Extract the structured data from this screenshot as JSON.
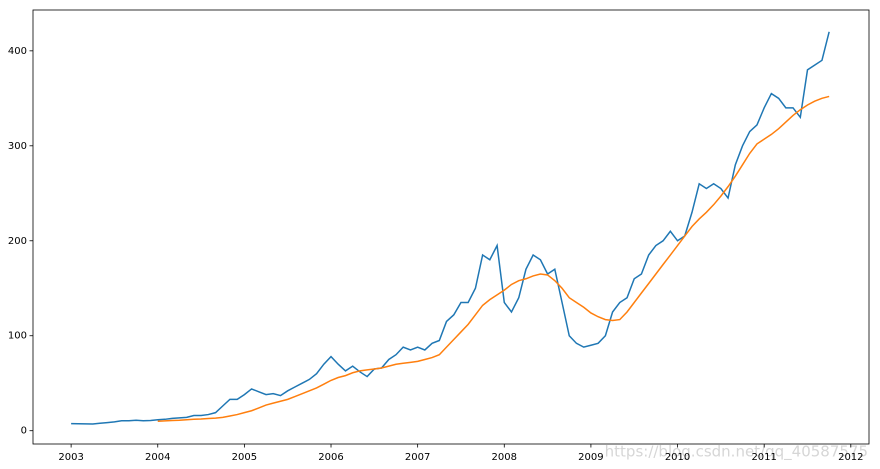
{
  "chart_data": {
    "type": "line",
    "watermark": "https://blog.csdn.net/qq_40587575",
    "x": [
      2003.0,
      2003.083,
      2003.167,
      2003.25,
      2003.333,
      2003.417,
      2003.5,
      2003.583,
      2003.667,
      2003.75,
      2003.833,
      2003.917,
      2004.0,
      2004.083,
      2004.167,
      2004.25,
      2004.333,
      2004.417,
      2004.5,
      2004.583,
      2004.667,
      2004.75,
      2004.833,
      2004.917,
      2005.0,
      2005.083,
      2005.167,
      2005.25,
      2005.333,
      2005.417,
      2005.5,
      2005.583,
      2005.667,
      2005.75,
      2005.833,
      2005.917,
      2006.0,
      2006.083,
      2006.167,
      2006.25,
      2006.333,
      2006.417,
      2006.5,
      2006.583,
      2006.667,
      2006.75,
      2006.833,
      2006.917,
      2007.0,
      2007.083,
      2007.167,
      2007.25,
      2007.333,
      2007.417,
      2007.5,
      2007.583,
      2007.667,
      2007.75,
      2007.833,
      2007.917,
      2008.0,
      2008.083,
      2008.167,
      2008.25,
      2008.333,
      2008.417,
      2008.5,
      2008.583,
      2008.667,
      2008.75,
      2008.833,
      2008.917,
      2009.0,
      2009.083,
      2009.167,
      2009.25,
      2009.333,
      2009.417,
      2009.5,
      2009.583,
      2009.667,
      2009.75,
      2009.833,
      2009.917,
      2010.0,
      2010.083,
      2010.167,
      2010.25,
      2010.333,
      2010.417,
      2010.5,
      2010.583,
      2010.667,
      2010.75,
      2010.833,
      2010.917,
      2011.0,
      2011.083,
      2011.167,
      2011.25,
      2011.333,
      2011.417,
      2011.5,
      2011.583,
      2011.667,
      2011.75
    ],
    "series": [
      {
        "color": "#1f77b4",
        "values": [
          7.4,
          7.3,
          7.2,
          7.1,
          7.8,
          8.5,
          9.3,
          10.5,
          10.5,
          11.0,
          10.5,
          10.8,
          11.5,
          12,
          13,
          13.5,
          14,
          16,
          16,
          17,
          19,
          26,
          33,
          33,
          38,
          44,
          41,
          38,
          39,
          37,
          42,
          46,
          50,
          54,
          60,
          70,
          78,
          70,
          63,
          68,
          62,
          57,
          65,
          66,
          75,
          80,
          88,
          85,
          88,
          85,
          92,
          95,
          115,
          122,
          135,
          135,
          150,
          185,
          180,
          195,
          135,
          125,
          140,
          170,
          185,
          180,
          165,
          170,
          135,
          100,
          92,
          88,
          90,
          92,
          100,
          125,
          135,
          140,
          160,
          165,
          185,
          195,
          200,
          210,
          200,
          205,
          230,
          260,
          255,
          260,
          255,
          245,
          280,
          300,
          315,
          322,
          340,
          355,
          350,
          340,
          340,
          330,
          380,
          385,
          390,
          420
        ]
      },
      {
        "color": "#ff7f0e",
        "values": [
          null,
          null,
          null,
          null,
          null,
          null,
          null,
          null,
          null,
          null,
          null,
          null,
          10,
          10.3,
          10.7,
          11,
          11.5,
          12,
          12.3,
          12.8,
          13.3,
          14,
          15.5,
          17,
          19,
          21,
          24,
          27,
          29,
          31,
          33,
          36,
          39,
          42,
          45,
          49,
          53,
          56,
          58,
          61,
          63,
          64,
          65,
          66,
          68,
          70,
          71,
          72,
          73,
          75,
          77,
          80,
          88,
          96,
          104,
          112,
          122,
          132,
          138,
          143,
          148,
          154,
          158,
          160,
          163,
          165,
          164,
          158,
          150,
          140,
          135,
          130,
          124,
          120,
          117,
          116,
          117,
          125,
          135,
          145,
          155,
          165,
          175,
          185,
          195,
          205,
          215,
          223,
          230,
          238,
          247,
          257,
          268,
          280,
          292,
          302,
          307,
          312,
          318,
          325,
          332,
          338,
          343,
          347,
          350,
          352
        ]
      }
    ],
    "xlim": [
      2002.56,
      2012.21
    ],
    "xticks": [
      2003,
      2004,
      2005,
      2006,
      2007,
      2008,
      2009,
      2010,
      2011,
      2012
    ],
    "ylim": [
      -14,
      443
    ],
    "yticks": [
      0,
      100,
      200,
      300,
      400
    ]
  }
}
